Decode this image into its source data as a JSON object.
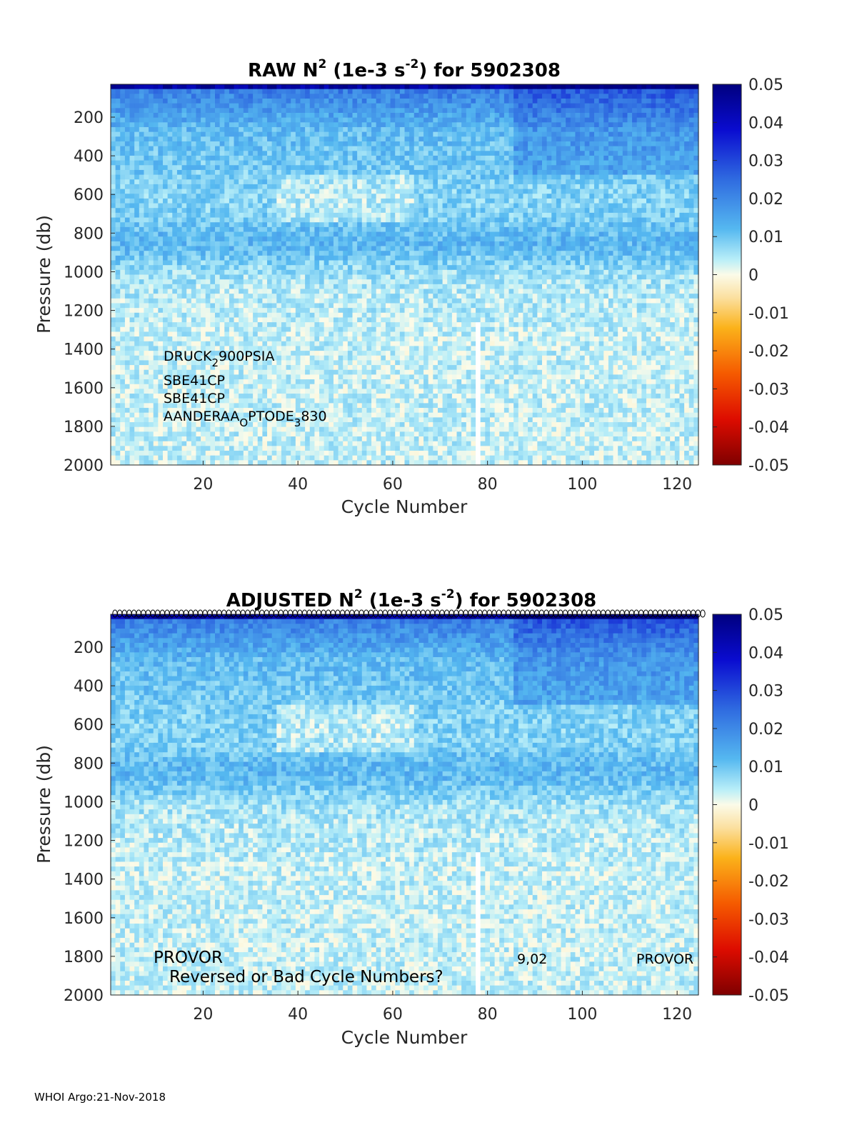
{
  "footer": "WHOI Argo:21-Nov-2018",
  "chart_data": [
    {
      "type": "heatmap",
      "title": {
        "main": "RAW N",
        "sup1": "2",
        "mid": " (1e-3 s",
        "sup2": "-2",
        "end": ") for 5902308"
      },
      "xlabel": "Cycle Number",
      "ylabel": "Pressure (db)",
      "xlim": [
        1,
        124
      ],
      "ylim": [
        2000,
        30
      ],
      "x_ticks": [
        20,
        40,
        60,
        80,
        100,
        120
      ],
      "y_ticks": [
        200,
        400,
        600,
        800,
        1000,
        1200,
        1400,
        1600,
        1800,
        2000
      ],
      "colorbar": {
        "range": [
          -0.05,
          0.05
        ],
        "ticks": [
          "0.05",
          "0.04",
          "0.03",
          "0.02",
          "0.01",
          "0",
          "-0.01",
          "-0.02",
          "-0.03",
          "-0.04",
          "-0.05"
        ]
      },
      "missing_cycle": 78,
      "sensor_notes": [
        {
          "base": "DRUCK",
          "sub": "2",
          "rest": "900PSIA"
        },
        {
          "base": "SBE41CP",
          "sub": "",
          "rest": ""
        },
        {
          "base": "SBE41CP",
          "sub": "",
          "rest": ""
        },
        {
          "base": "AANDERAA",
          "sub": "O",
          "rest": "PTODE",
          "sub2": "3",
          "rest2": "830"
        }
      ]
    },
    {
      "type": "heatmap",
      "title": {
        "main": "ADJUSTED N",
        "sup1": "2",
        "mid": " (1e-3 s",
        "sup2": "-2",
        "end": ") for 5902308"
      },
      "xlabel": "Cycle Number",
      "ylabel": "Pressure (db)",
      "xlim": [
        1,
        124
      ],
      "ylim": [
        2000,
        30
      ],
      "x_ticks": [
        20,
        40,
        60,
        80,
        100,
        120
      ],
      "y_ticks": [
        200,
        400,
        600,
        800,
        1000,
        1200,
        1400,
        1600,
        1800,
        2000
      ],
      "colorbar": {
        "range": [
          -0.05,
          0.05
        ],
        "ticks": [
          "0.05",
          "0.04",
          "0.03",
          "0.02",
          "0.01",
          "0",
          "-0.01",
          "-0.02",
          "-0.03",
          "-0.04",
          "-0.05"
        ]
      },
      "missing_cycle": 78,
      "annotations": {
        "float_type_left": "PROVOR",
        "warning": "Reversed or Bad Cycle Numbers?",
        "version": "9,02",
        "float_type_right": "PROVOR"
      }
    }
  ]
}
